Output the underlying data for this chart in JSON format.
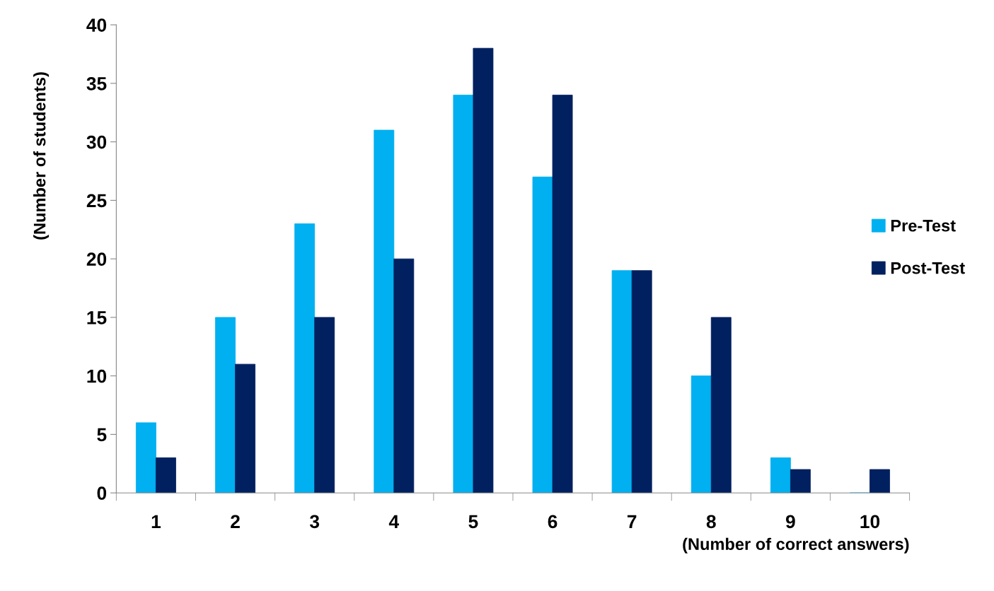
{
  "chart_data": {
    "type": "bar",
    "xlabel": "(Number of correct answers)",
    "ylabel": "(Number of students)",
    "categories": [
      "1",
      "2",
      "3",
      "4",
      "5",
      "6",
      "7",
      "8",
      "9",
      "10"
    ],
    "series": [
      {
        "name": "Pre-Test",
        "color": "#00b0f0",
        "values": [
          6,
          15,
          23,
          31,
          34,
          27,
          19,
          10,
          3,
          0
        ]
      },
      {
        "name": "Post-Test",
        "color": "#002060",
        "values": [
          3,
          11,
          15,
          20,
          38,
          34,
          19,
          15,
          2,
          2
        ]
      }
    ],
    "ylim": [
      0,
      40
    ],
    "yticks": [
      0,
      5,
      10,
      15,
      20,
      25,
      30,
      35,
      40
    ],
    "grid": false,
    "legend": "right"
  }
}
